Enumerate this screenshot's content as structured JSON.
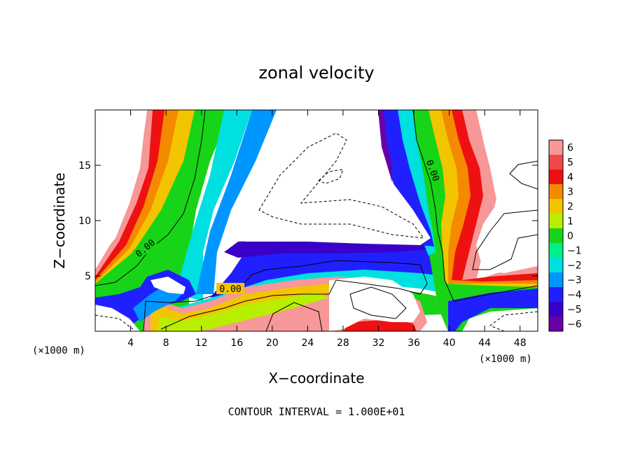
{
  "chart_data": {
    "type": "heatmap",
    "title": "zonal velocity",
    "xlabel": "X−coordinate",
    "ylabel": "Z−coordinate",
    "x_unit_left": "(×1000 m)",
    "x_unit_right": "(×1000 m)",
    "xlim": [
      0,
      50
    ],
    "ylim": [
      0,
      20
    ],
    "x_ticks": [
      4,
      8,
      12,
      16,
      20,
      24,
      28,
      32,
      36,
      40,
      44,
      48
    ],
    "x_tick_labels": [
      "4",
      "8",
      "12",
      "16",
      "20",
      "24",
      "28",
      "32",
      "36",
      "40",
      "44",
      "48"
    ],
    "y_ticks": [
      5,
      10,
      15
    ],
    "y_tick_labels": [
      "5",
      "10",
      "15"
    ],
    "colorbar": {
      "range": [
        -6,
        6
      ],
      "levels": [
        6,
        5,
        4,
        3,
        2,
        1,
        0,
        -1,
        -2,
        -3,
        -4,
        -5,
        -6
      ],
      "labels": [
        "6",
        "5",
        "4",
        "3",
        "2",
        "1",
        "0",
        "−1",
        "−2",
        "−3",
        "−4",
        "−5",
        "−6"
      ],
      "colors": [
        "#f79797",
        "#f14848",
        "#ee1111",
        "#f48a00",
        "#f2c500",
        "#b9ee00",
        "#18d418",
        "#00ee88",
        "#00e0e0",
        "#0096ff",
        "#2020ff",
        "#3a00c8",
        "#6a00a8"
      ]
    },
    "contour_labels": [
      {
        "text": "0.00",
        "x": 5.6,
        "z": 6.6,
        "angle": -40
      },
      {
        "text": "0.00",
        "x": 15.2,
        "z": 3.5,
        "angle": 0
      },
      {
        "text": "0.00",
        "x": 37.8,
        "z": 14.3,
        "angle": 70
      }
    ],
    "footer": "CONTOUR INTERVAL = 1.000E+01"
  }
}
